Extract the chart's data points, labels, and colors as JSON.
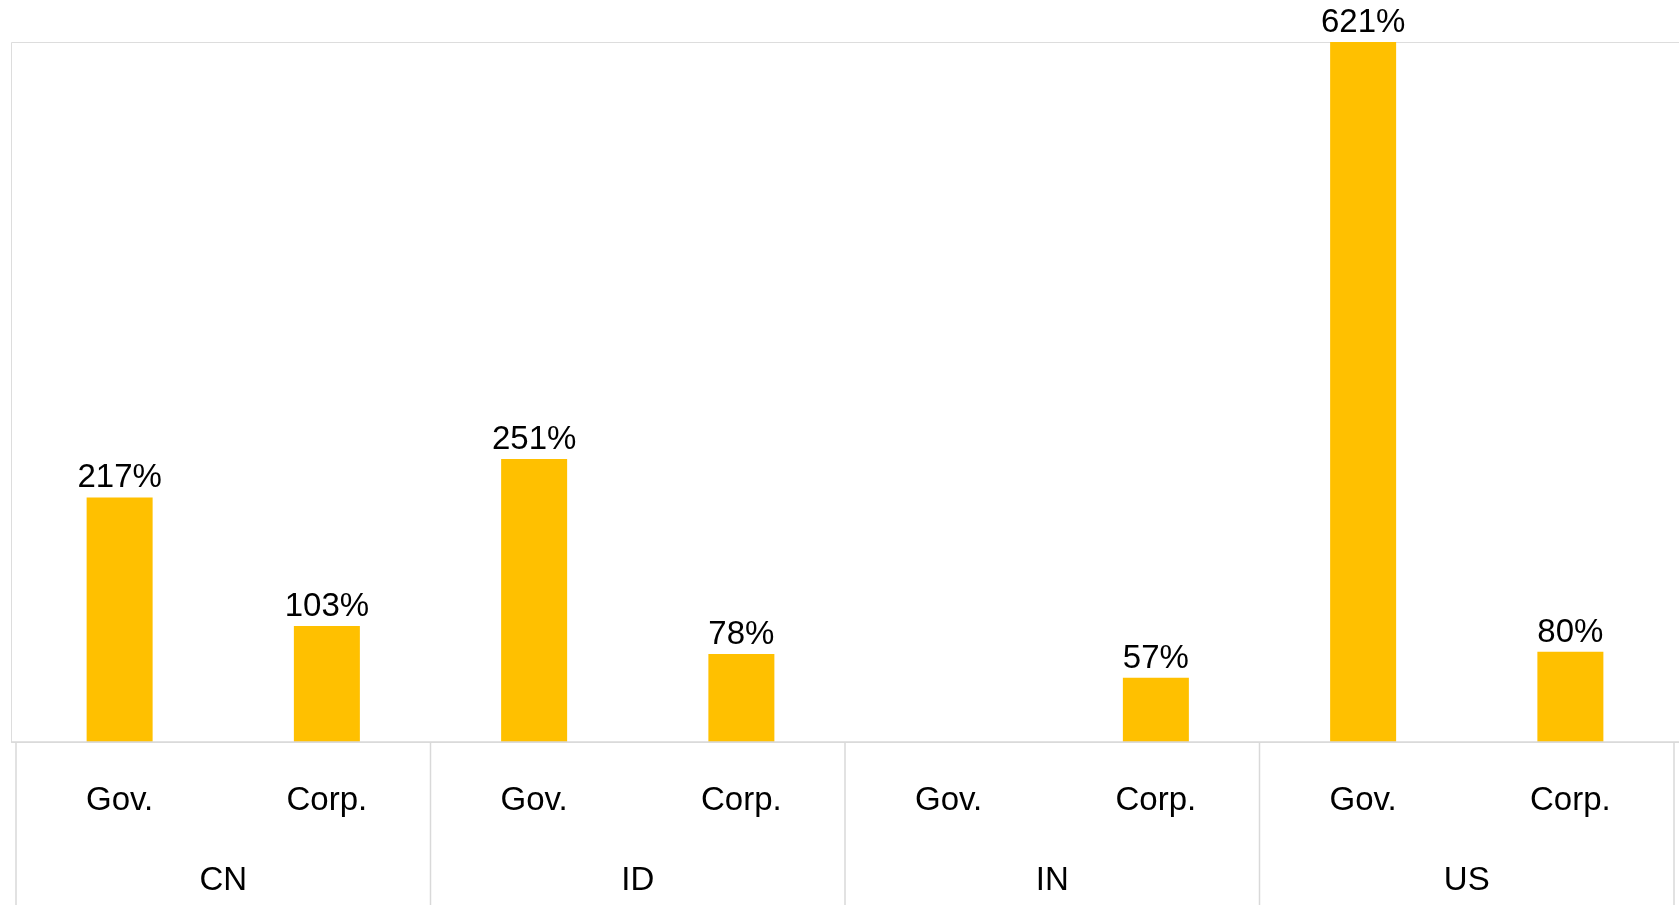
{
  "chart_data": {
    "type": "bar",
    "categories": [
      "Gov.",
      "Corp.",
      "Gov.",
      "Corp.",
      "Gov.",
      "Corp.",
      "Gov.",
      "Corp."
    ],
    "values": [
      217,
      103,
      251,
      78,
      null,
      57,
      621,
      80
    ],
    "value_labels": [
      "217%",
      "103%",
      "251%",
      "78%",
      null,
      "57%",
      "621%",
      "80%"
    ],
    "color": "#ffc000",
    "annotations": [
      "CN",
      "ID",
      "IN",
      "US"
    ]
  }
}
